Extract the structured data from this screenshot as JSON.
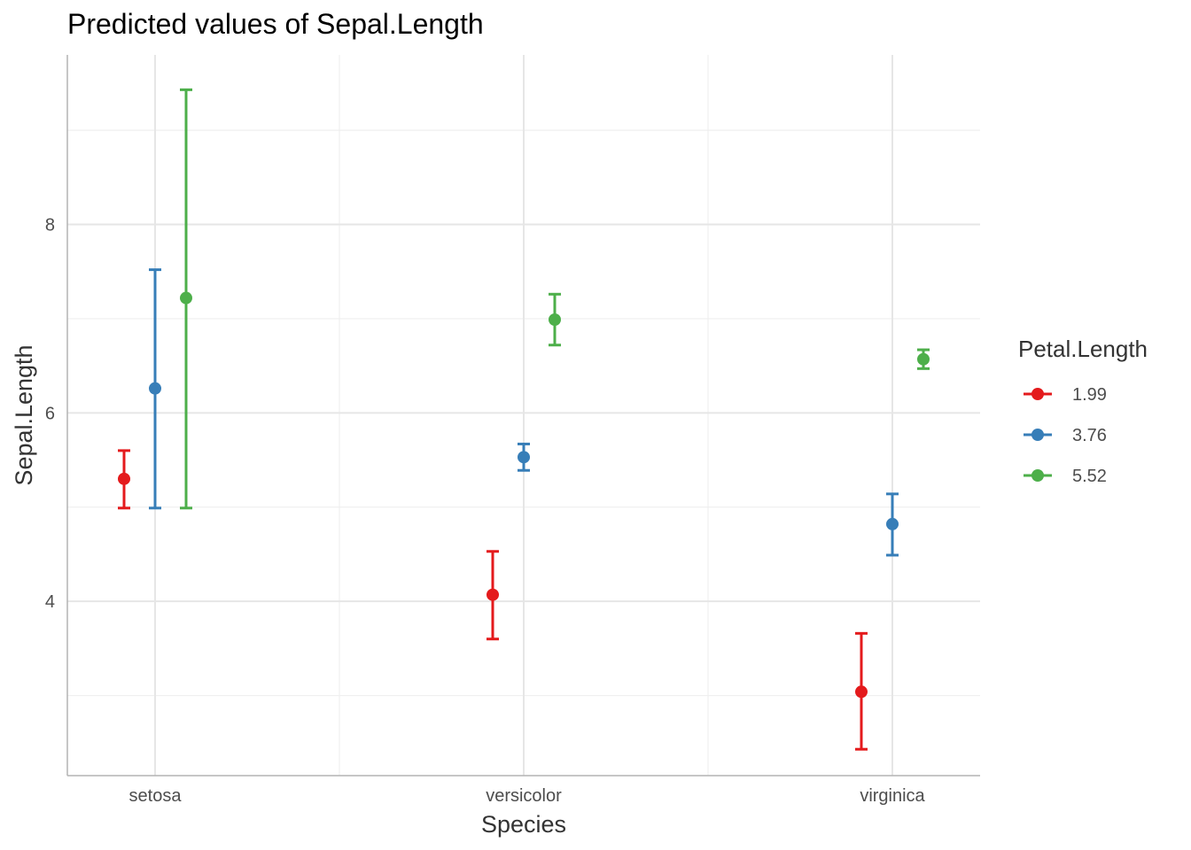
{
  "chart_data": {
    "type": "scatter",
    "title": "Predicted values of Sepal.Length",
    "xlabel": "Species",
    "ylabel": "Sepal.Length",
    "categories": [
      "setosa",
      "versicolor",
      "virginica"
    ],
    "y_ticks": [
      4,
      6,
      8
    ],
    "y_minor_ticks": [
      3,
      5,
      7,
      9
    ],
    "ylim": [
      2.15,
      9.8
    ],
    "grid": true,
    "legend": {
      "title": "Petal.Length",
      "position": "right"
    },
    "series": [
      {
        "name": "1.99",
        "color": "#e41a1c",
        "values": [
          5.3,
          4.07,
          3.04
        ],
        "lower": [
          4.99,
          3.6,
          2.43
        ],
        "upper": [
          5.6,
          4.53,
          3.66
        ]
      },
      {
        "name": "3.76",
        "color": "#377eb8",
        "values": [
          6.26,
          5.53,
          4.82
        ],
        "lower": [
          4.99,
          5.39,
          4.49
        ],
        "upper": [
          7.52,
          5.67,
          5.14
        ]
      },
      {
        "name": "5.52",
        "color": "#4daf4a",
        "values": [
          7.22,
          6.99,
          6.57
        ],
        "lower": [
          4.99,
          6.72,
          6.47
        ],
        "upper": [
          9.43,
          7.26,
          6.67
        ]
      }
    ]
  }
}
